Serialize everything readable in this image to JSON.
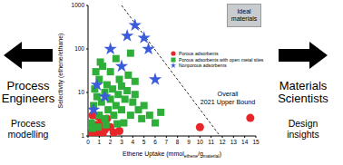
{
  "chart_data": {
    "type": "scatter",
    "log": "y",
    "xlim": [
      0,
      15
    ],
    "xticks": [
      0,
      1,
      2,
      3,
      4,
      5,
      6,
      7,
      8,
      9,
      10,
      11,
      12,
      13,
      14,
      15
    ],
    "ylim": [
      1,
      1000
    ],
    "yticks": [
      1,
      10,
      100,
      1000
    ],
    "ylabel": "Selectivity (ethene/ethane)",
    "xlabel": [
      "Ethene Uptake (mmol",
      "ethene",
      "/g",
      "material",
      ")"
    ],
    "legend": "upper right",
    "series": [
      {
        "name": "Porous adsorbents",
        "color": "#e8262a",
        "marker": "circle",
        "x": [
          0.3,
          0.5,
          0.6,
          0.8,
          1.0,
          1.2,
          1.3,
          1.5,
          1.7,
          2.0,
          2.3,
          0.4,
          0.9,
          1.1,
          2.8,
          10.0,
          14.5
        ],
        "y": [
          1.2,
          1.5,
          1.1,
          1.8,
          1.3,
          2.0,
          1.1,
          1.4,
          2.5,
          1.6,
          1.2,
          3.0,
          2.8,
          1.0,
          1.3,
          1.6,
          2.6
        ]
      },
      {
        "name": "Porous adsorbents with open metal sites",
        "color": "#2fae3a",
        "marker": "square",
        "x": [
          0.3,
          0.5,
          0.6,
          0.8,
          1.0,
          1.0,
          1.2,
          1.3,
          1.5,
          1.5,
          1.7,
          1.8,
          2.0,
          2.0,
          2.2,
          2.3,
          2.5,
          2.5,
          2.7,
          2.8,
          3.0,
          3.0,
          3.2,
          3.3,
          3.5,
          3.6,
          3.8,
          4.0,
          4.2,
          4.5,
          4.8,
          5.0,
          5.5,
          6.0,
          6.5,
          0.4,
          0.9,
          1.6,
          2.6,
          0.7,
          1.1,
          3.8,
          4.2
        ],
        "y": [
          2,
          5,
          12,
          8,
          3,
          20,
          6,
          40,
          2.5,
          10,
          15,
          4,
          7,
          30,
          12,
          3,
          5,
          60,
          9,
          20,
          4,
          14,
          2,
          7,
          11,
          25,
          3,
          6,
          9,
          4,
          2.5,
          5,
          3,
          2,
          3.5,
          1.5,
          1.6,
          1.8,
          1.9,
          30,
          50,
          80,
          18
        ]
      },
      {
        "name": "Nonporous adsorbents",
        "color": "#3b5bdb",
        "marker": "star",
        "x": [
          0.5,
          0.8,
          1.5,
          2.0,
          3.5,
          4.2,
          5.0,
          5.4,
          3.0,
          6.0
        ],
        "y": [
          4,
          15,
          8,
          100,
          200,
          350,
          180,
          100,
          40,
          20
        ]
      }
    ],
    "upper_bound": {
      "x": [
        3,
        11.8
      ],
      "y": [
        1000,
        1
      ],
      "label": [
        "Overall",
        "2021 Upper Bound"
      ],
      "line_style": "dashed"
    },
    "box_label": "Ideal materials"
  },
  "left_panel": {
    "title": "Process Engineers",
    "subtitle": "Process modelling",
    "arrow": "left"
  },
  "right_panel": {
    "title": "Materials Scientists",
    "subtitle": "Design insights",
    "arrow": "right"
  }
}
